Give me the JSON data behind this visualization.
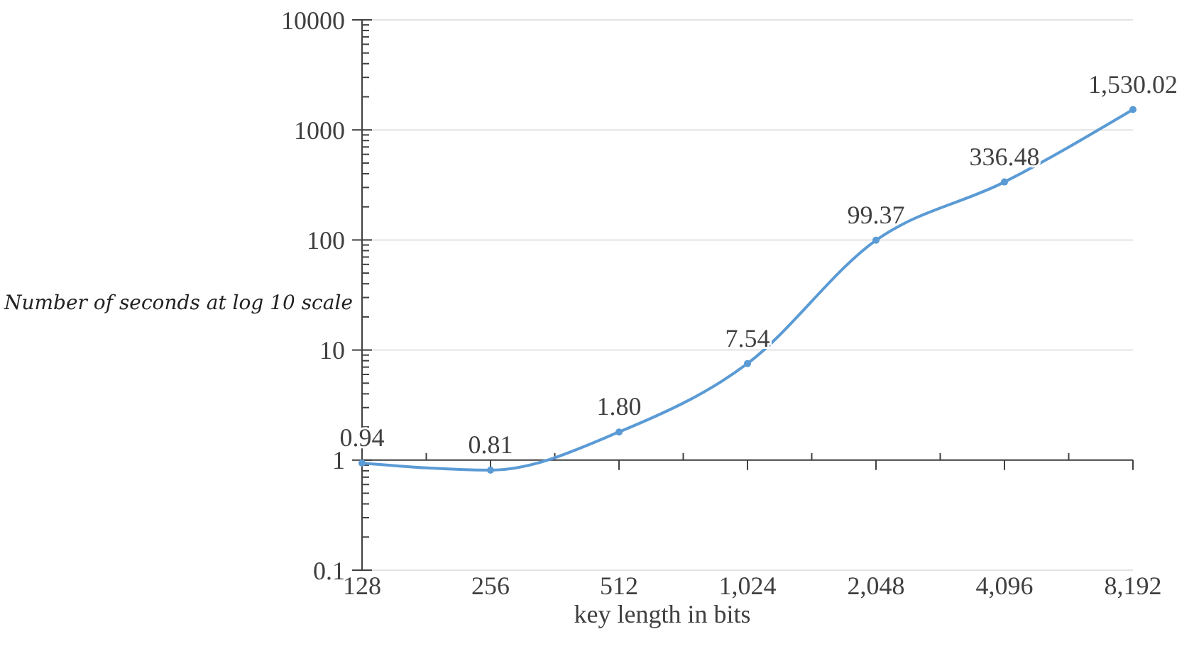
{
  "chart_data": {
    "type": "line",
    "xlabel": "key length in bits",
    "ylabel": "Number of seconds at log 10 scale",
    "categories": [
      "128",
      "256",
      "512",
      "1,024",
      "2,048",
      "4,096",
      "8,192"
    ],
    "series": [
      {
        "color": "#5b9bd5",
        "values": [
          0.94,
          0.81,
          1.8,
          7.54,
          99.37,
          336.48,
          1530.02
        ]
      }
    ],
    "value_labels": [
      "0.94",
      "0.81",
      "1.80",
      "7.54",
      "99.37",
      "336.48",
      "1,530.02"
    ],
    "ref_lines": [
      {
        "axis": "y",
        "value": 1,
        "color": "#404040"
      }
    ],
    "log": "y",
    "ylim": [
      0.1,
      10000
    ],
    "yticks": [
      0.1,
      1,
      10,
      100,
      1000,
      10000
    ],
    "grid": "y",
    "marker": "circle",
    "line_style": "solid"
  }
}
